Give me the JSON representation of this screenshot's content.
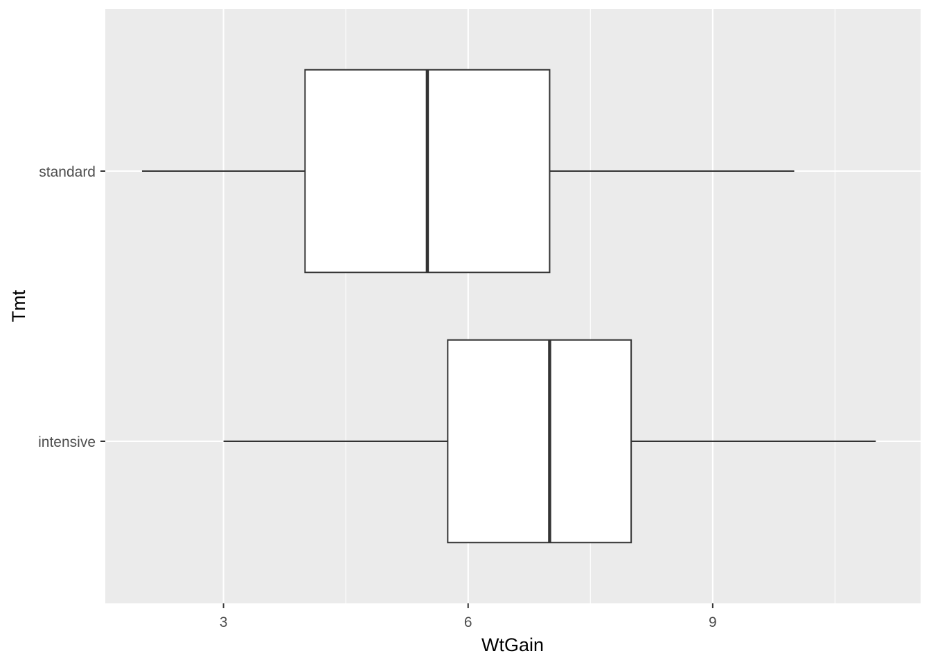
{
  "chart_data": {
    "type": "boxplot",
    "orientation": "horizontal",
    "title": "",
    "xlabel": "WtGain",
    "ylabel": "Tmt",
    "xlim": [
      1.55,
      11.55
    ],
    "x_ticks": [
      3,
      6,
      9
    ],
    "x_minor_ticks": [
      4.5,
      7.5,
      10.5
    ],
    "categories": [
      "intensive",
      "standard"
    ],
    "boxes": [
      {
        "category": "intensive",
        "whisker_low": 3,
        "q1": 5.75,
        "median": 7,
        "q3": 8,
        "whisker_high": 11
      },
      {
        "category": "standard",
        "whisker_low": 2,
        "q1": 4,
        "median": 5.5,
        "q3": 7,
        "whisker_high": 10
      }
    ],
    "grid": true,
    "colors": {
      "panel": "#ebebeb",
      "grid": "#ffffff",
      "box_fill": "#ffffff",
      "box_stroke": "#333333"
    }
  }
}
